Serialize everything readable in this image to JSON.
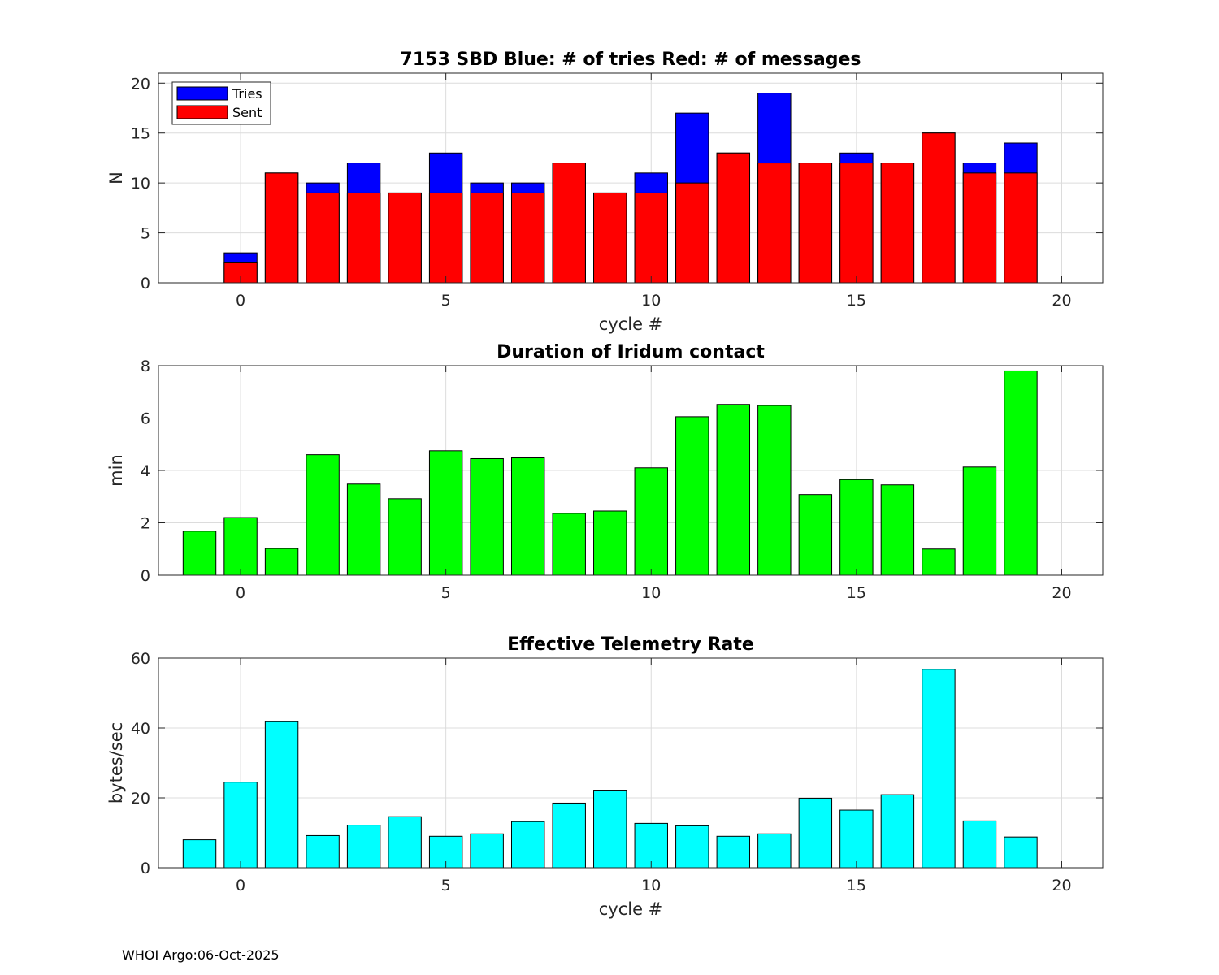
{
  "footer": "WHOI Argo:06-Oct-2025",
  "chart_data": [
    {
      "type": "bar",
      "stacked_overlay": true,
      "title": "7153 SBD  Blue: # of tries   Red: # of messages",
      "xlabel": "cycle #",
      "ylabel": "N",
      "xlim": [
        -2,
        21
      ],
      "ylim": [
        0,
        21
      ],
      "xticks": [
        0,
        5,
        10,
        15,
        20
      ],
      "yticks": [
        0,
        5,
        10,
        15,
        20
      ],
      "grid": true,
      "legend": {
        "position": "top-left",
        "entries": [
          "Tries",
          "Sent"
        ]
      },
      "x": [
        0,
        1,
        2,
        3,
        4,
        5,
        6,
        7,
        8,
        9,
        10,
        11,
        12,
        13,
        14,
        15,
        16,
        17,
        18,
        19
      ],
      "series": [
        {
          "name": "Tries",
          "color": "#0000ff",
          "values": [
            3,
            11,
            10,
            12,
            9,
            13,
            10,
            10,
            12,
            9,
            11,
            17,
            13,
            19,
            12,
            13,
            12,
            15,
            12,
            14
          ]
        },
        {
          "name": "Sent",
          "color": "#ff0000",
          "values": [
            2,
            11,
            9,
            9,
            9,
            9,
            9,
            9,
            12,
            9,
            9,
            10,
            13,
            12,
            12,
            12,
            12,
            15,
            11,
            11
          ]
        }
      ]
    },
    {
      "type": "bar",
      "title": "Duration of Iridum contact",
      "xlabel": "",
      "ylabel": "min",
      "xlim": [
        -2,
        21
      ],
      "ylim": [
        0,
        8
      ],
      "xticks": [
        0,
        5,
        10,
        15,
        20
      ],
      "yticks": [
        0,
        2,
        4,
        6,
        8
      ],
      "grid": true,
      "x": [
        -1,
        0,
        1,
        2,
        3,
        4,
        5,
        6,
        7,
        8,
        9,
        10,
        11,
        12,
        13,
        14,
        15,
        16,
        17,
        18,
        19
      ],
      "series": [
        {
          "name": "Duration",
          "color": "#00ff00",
          "values": [
            1.68,
            2.2,
            1.02,
            4.6,
            3.48,
            2.92,
            4.75,
            4.45,
            4.48,
            2.36,
            2.45,
            4.1,
            6.05,
            6.52,
            6.48,
            3.08,
            3.65,
            3.45,
            1.0,
            4.13,
            7.8
          ]
        }
      ]
    },
    {
      "type": "bar",
      "title": "Effective Telemetry Rate",
      "xlabel": "cycle #",
      "ylabel": "bytes/sec",
      "xlim": [
        -2,
        21
      ],
      "ylim": [
        0,
        60
      ],
      "xticks": [
        0,
        5,
        10,
        15,
        20
      ],
      "yticks": [
        0,
        20,
        40,
        60
      ],
      "grid": true,
      "x": [
        -1,
        0,
        1,
        2,
        3,
        4,
        5,
        6,
        7,
        8,
        9,
        10,
        11,
        12,
        13,
        14,
        15,
        16,
        17,
        18,
        19
      ],
      "series": [
        {
          "name": "Rate",
          "color": "#00ffff",
          "values": [
            8.0,
            24.5,
            41.8,
            9.2,
            12.2,
            14.6,
            9.0,
            9.7,
            13.2,
            18.5,
            22.2,
            12.7,
            12.0,
            9.0,
            9.7,
            19.9,
            16.5,
            20.9,
            56.8,
            13.4,
            8.8
          ]
        }
      ]
    }
  ]
}
